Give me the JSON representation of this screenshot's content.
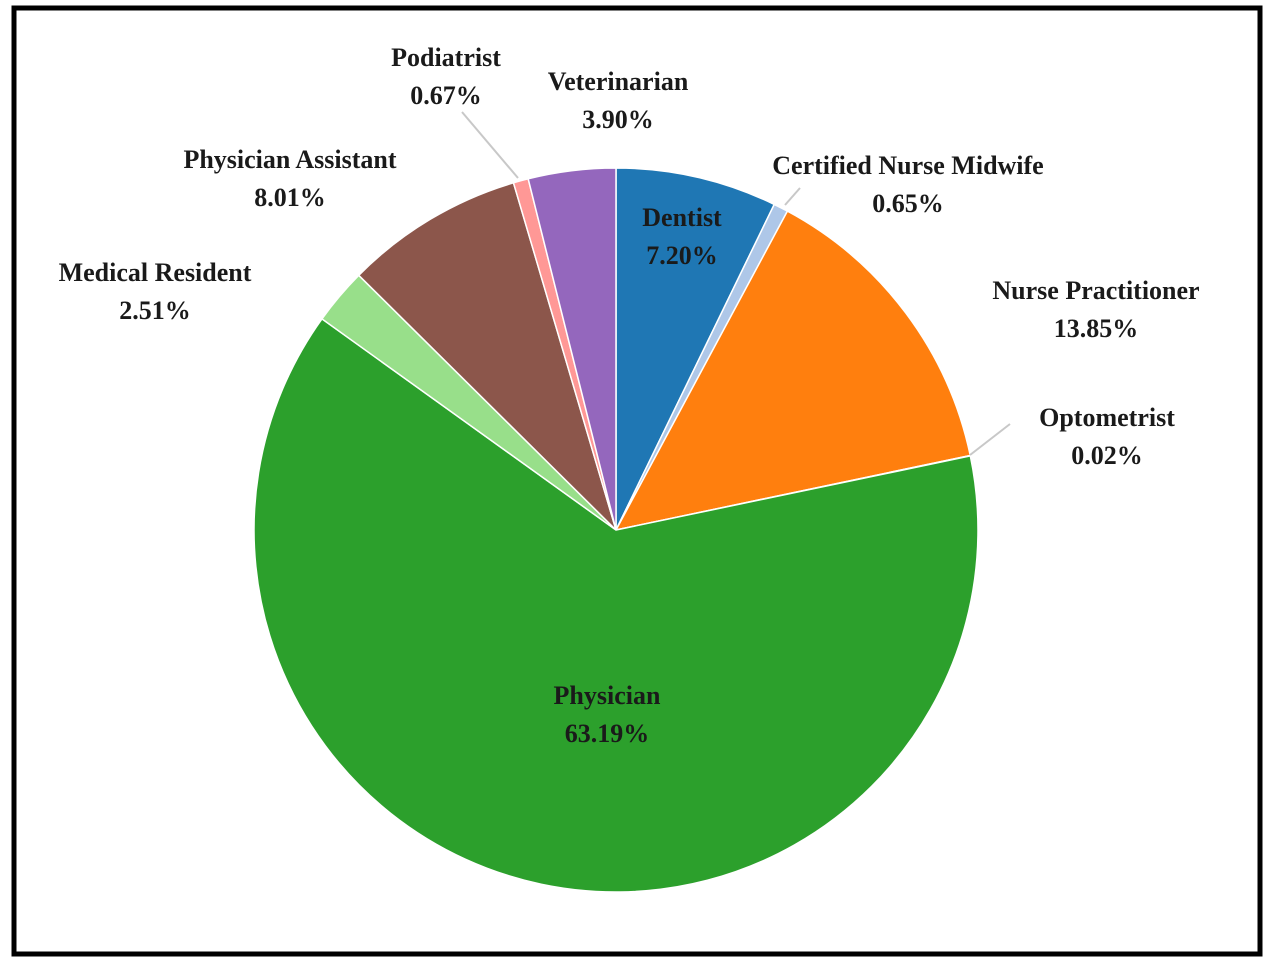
{
  "chart_data": {
    "type": "pie",
    "categories": [
      "Dentist",
      "Certified Nurse Midwife",
      "Nurse Practitioner",
      "Optometrist",
      "Physician",
      "Medical Resident",
      "Physician Assistant",
      "Podiatrist",
      "Veterinarian"
    ],
    "values": [
      7.2,
      0.65,
      13.85,
      0.02,
      63.19,
      2.51,
      8.01,
      0.67,
      3.9
    ],
    "value_labels": [
      "7.20%",
      "0.65%",
      "13.85%",
      "0.02%",
      "63.19%",
      "2.51%",
      "8.01%",
      "0.67%",
      "3.90%"
    ],
    "colors": [
      "#1f77b4",
      "#aec7e8",
      "#ff7f0e",
      "#ffbb78",
      "#2ca02c",
      "#98df8a",
      "#8c564b",
      "#ff9896",
      "#9467bd"
    ]
  }
}
